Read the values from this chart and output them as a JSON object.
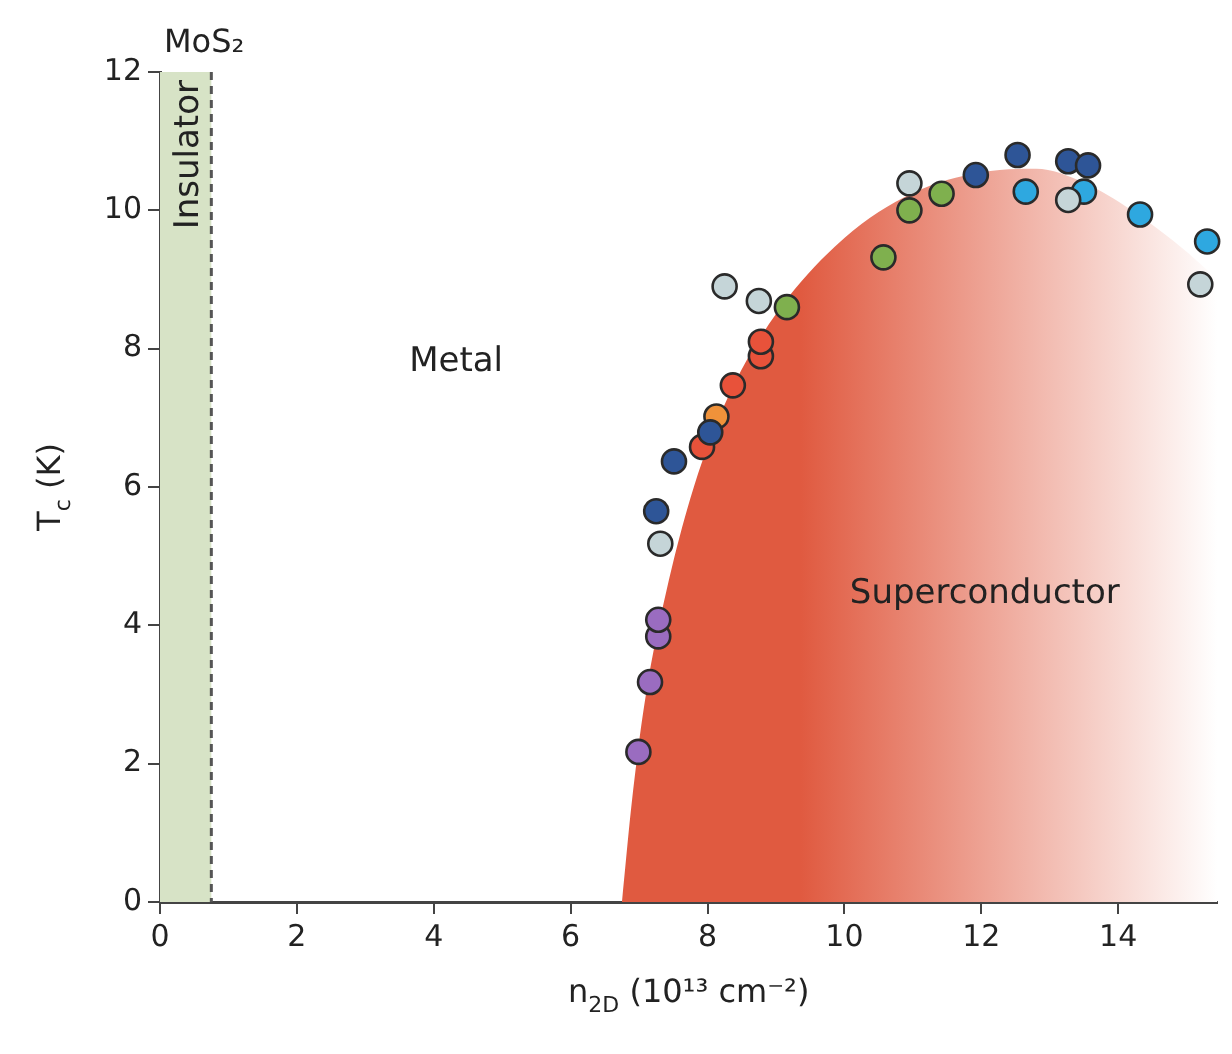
{
  "chart_data": {
    "type": "scatter",
    "title": "MoS₂",
    "xlabel": "n$_{2D}$ (10¹³ cm⁻²)",
    "ylabel": "T$_{c}$ (K)",
    "xlim": [
      0,
      15.45
    ],
    "ylim": [
      0,
      12
    ],
    "xticks": [
      0,
      2,
      4,
      6,
      8,
      10,
      12,
      14
    ],
    "yticks": [
      0,
      2,
      4,
      6,
      8,
      10,
      12
    ],
    "grid": false,
    "legend": false,
    "marker": "circle",
    "annotations": [
      "Metal"
    ],
    "bands": [
      {
        "axis": "x",
        "from": 0,
        "to": 0.75,
        "label": "Insulator",
        "color": "#d7e3c6"
      }
    ],
    "ref_lines": [
      {
        "axis": "x",
        "value": 0.75,
        "line_style": "dashed",
        "color": "#555555"
      }
    ],
    "series": [
      {
        "name": "Superconductor",
        "type": "area",
        "marker": "none",
        "color": "#e05a40",
        "x": [
          6.75,
          6.9,
          7.1,
          7.4,
          7.8,
          8.3,
          9,
          10,
          11,
          12,
          12.8,
          13.5,
          14.2,
          15,
          15.45
        ],
        "values": [
          0,
          1.5,
          3,
          4.5,
          6,
          7.3,
          8.5,
          9.6,
          10.25,
          10.55,
          10.6,
          10.4,
          10,
          9.4,
          9
        ]
      },
      {
        "color": "#9a6cc0",
        "x": [
          6.99,
          7.16,
          7.28,
          7.28
        ],
        "values": [
          2.17,
          3.18,
          3.84,
          4.08
        ]
      },
      {
        "color": "#c5d5d8",
        "x": [
          7.31,
          8.25,
          8.75,
          10.95,
          13.27,
          15.2
        ],
        "values": [
          5.18,
          8.9,
          8.69,
          10.39,
          10.15,
          8.93
        ]
      },
      {
        "color": "#2e5597",
        "x": [
          7.25,
          7.51,
          8.04,
          11.92,
          12.53,
          13.27,
          13.56
        ],
        "values": [
          5.65,
          6.37,
          6.79,
          10.51,
          10.8,
          10.71,
          10.65
        ]
      },
      {
        "color": "#e8523a",
        "x": [
          7.92,
          8.37,
          8.78,
          8.78
        ],
        "values": [
          6.58,
          7.47,
          7.89,
          8.1
        ]
      },
      {
        "color": "#f0923a",
        "x": [
          8.13
        ],
        "values": [
          7.02
        ]
      },
      {
        "color": "#7fb04e",
        "x": [
          9.16,
          10.57,
          10.95,
          11.42
        ],
        "values": [
          8.6,
          9.32,
          10.0,
          10.24
        ]
      },
      {
        "color": "#2ea8e0",
        "x": [
          12.65,
          13.5,
          14.32,
          15.3
        ],
        "values": [
          10.27,
          10.27,
          9.94,
          9.55
        ]
      }
    ]
  }
}
